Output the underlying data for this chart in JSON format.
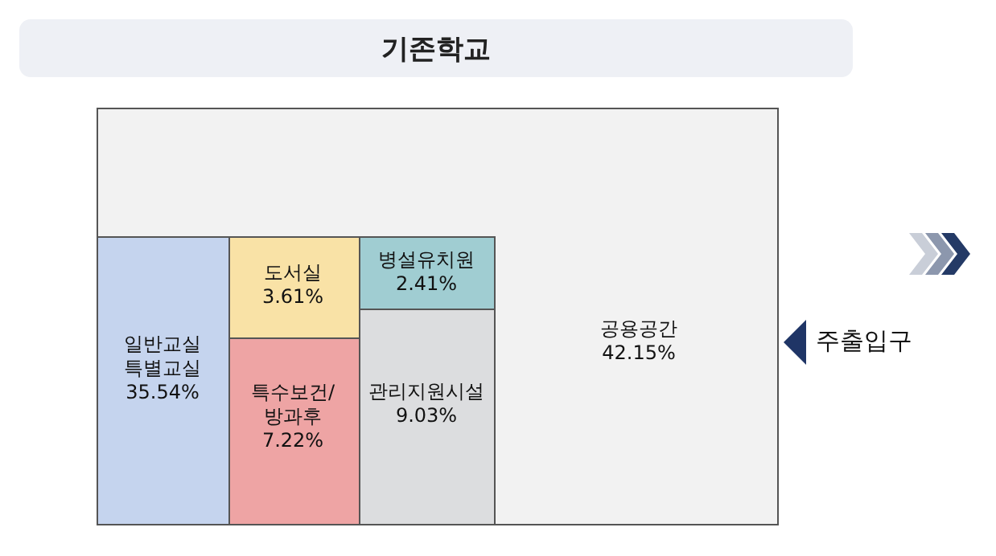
{
  "chart_data": {
    "type": "other",
    "title": "기존학교",
    "categories": [
      "공용공간",
      "일반교실\n특별교실",
      "도서실",
      "특수보건/\n방과후",
      "병설유치원",
      "관리지원시설"
    ],
    "values": [
      42.15,
      35.54,
      3.61,
      7.22,
      2.41,
      9.03
    ],
    "value_labels": [
      "42.15%",
      "35.54%",
      "3.61%",
      "7.22%",
      "2.41%",
      "9.03%"
    ],
    "colors": [
      "#f2f2f2",
      "#c5d4ee",
      "#f9e2a6",
      "#eea4a4",
      "#a0cdd2",
      "#dcdddf"
    ],
    "annotations": [
      "주출입구"
    ]
  }
}
